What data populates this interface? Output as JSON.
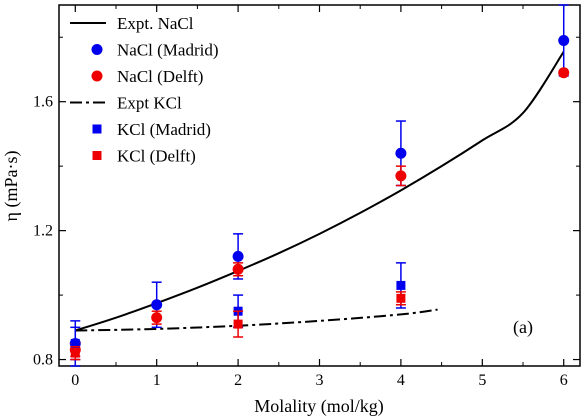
{
  "chart_data": {
    "type": "scatter",
    "xlabel": "Molality (mol/kg)",
    "ylabel": "η (mPa·s)",
    "xlim": [
      -0.2,
      6.2
    ],
    "ylim": [
      0.78,
      1.9
    ],
    "xticks": [
      0,
      1,
      2,
      3,
      4,
      5,
      6
    ],
    "yticks": [
      0.8,
      1.2,
      1.6
    ],
    "x_tick_labels": [
      "0",
      "1",
      "2",
      "3",
      "4",
      "5",
      "6"
    ],
    "y_tick_labels": [
      "0.8",
      "1.2",
      "1.6"
    ],
    "annotation": "(a)",
    "legend_position": "top-left",
    "series": [
      {
        "name": "Expt. NaCl",
        "kind": "line",
        "style": "solid",
        "color": "#000000",
        "x": [
          0,
          0.5,
          1,
          1.5,
          2,
          2.5,
          3,
          3.5,
          4,
          4.5,
          5,
          5.5,
          6
        ],
        "y": [
          0.89,
          0.93,
          0.975,
          1.023,
          1.075,
          1.13,
          1.19,
          1.255,
          1.325,
          1.4,
          1.48,
          1.565,
          1.755
        ]
      },
      {
        "name": "NaCl (Madrid)",
        "kind": "points",
        "marker": "circle",
        "color": "#0000ee",
        "x": [
          0,
          1,
          2,
          4,
          6
        ],
        "y": [
          0.85,
          0.97,
          1.12,
          1.44,
          1.79
        ],
        "err": [
          0.07,
          0.07,
          0.07,
          0.1,
          0.11
        ]
      },
      {
        "name": "NaCl (Delft)",
        "kind": "points",
        "marker": "circle",
        "color": "#ee0000",
        "x": [
          0,
          1,
          2,
          4,
          6
        ],
        "y": [
          0.83,
          0.93,
          1.08,
          1.37,
          1.69
        ],
        "err": [
          0.02,
          0.02,
          0.02,
          0.03,
          0
        ]
      },
      {
        "name": "Expt KCl",
        "kind": "line",
        "style": "dashdot",
        "color": "#000000",
        "x": [
          0,
          1,
          2,
          3,
          4,
          4.45
        ],
        "y": [
          0.89,
          0.895,
          0.905,
          0.92,
          0.94,
          0.955
        ]
      },
      {
        "name": "KCl (Madrid)",
        "kind": "points",
        "marker": "square",
        "color": "#0000ee",
        "x": [
          0,
          2,
          4
        ],
        "y": [
          0.85,
          0.95,
          1.03
        ],
        "err": [
          0.05,
          0.05,
          0.07
        ]
      },
      {
        "name": "KCl (Delft)",
        "kind": "points",
        "marker": "square",
        "color": "#ee0000",
        "x": [
          0,
          2,
          4
        ],
        "y": [
          0.82,
          0.91,
          0.99
        ],
        "err": [
          0.02,
          0.04,
          0.02
        ]
      }
    ]
  }
}
